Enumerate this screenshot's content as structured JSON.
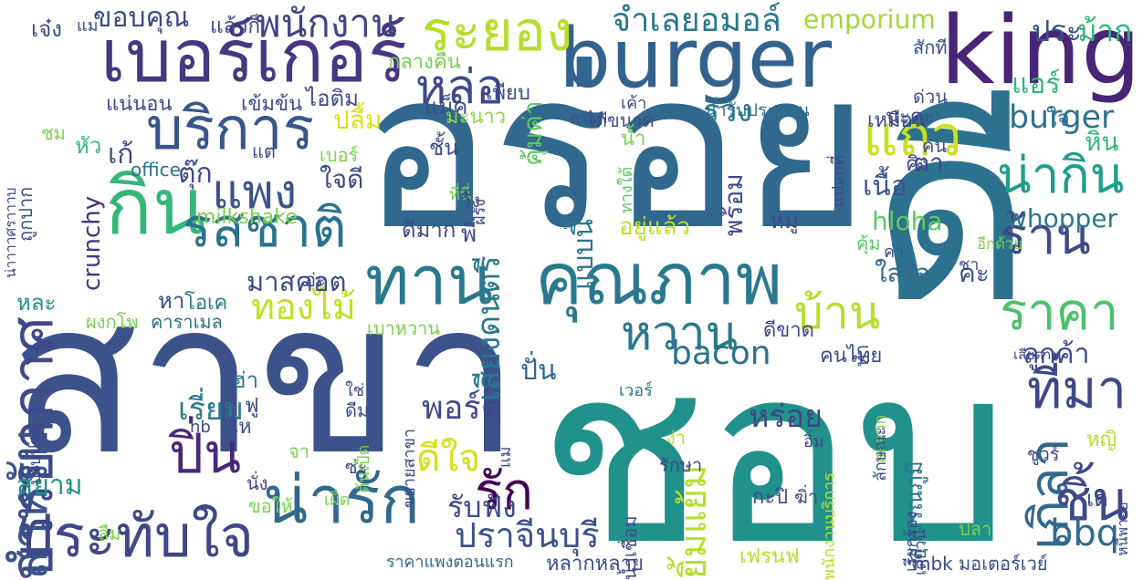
{
  "words": [
    {
      "text": "สาขา",
      "color": "#3b528b"
    },
    {
      "text": "ชอบ",
      "color": "#21918c"
    },
    {
      "text": "อร่อย",
      "color": "#31688e"
    },
    {
      "text": "ดี",
      "color": "#2c728e"
    },
    {
      "text": "burger",
      "color": "#33638d"
    },
    {
      "text": "king",
      "color": "#482576"
    },
    {
      "text": "เบอร์เกอร์",
      "color": "#453781"
    },
    {
      "text": "กิน",
      "color": "#35b779"
    },
    {
      "text": "บริการ",
      "color": "#39568c"
    },
    {
      "text": "รสชาติ",
      "color": "#2c728e"
    },
    {
      "text": "ระยอง",
      "color": "#b5de2b"
    },
    {
      "text": "หล่อ",
      "color": "#3e4989"
    },
    {
      "text": "คุณภาพ",
      "color": "#2a788e"
    },
    {
      "text": "แถว",
      "color": "#c8e020"
    },
    {
      "text": "ทาน",
      "color": "#2a788e"
    },
    {
      "text": "ประทับใจ",
      "color": "#3f4788"
    },
    {
      "text": "น่ารัก",
      "color": "#31688e"
    },
    {
      "text": "บรรยากาศ",
      "color": "#3e4989"
    },
    {
      "text": "สำหรับ",
      "color": "#3b528b"
    },
    {
      "text": "ที่มา",
      "color": "#3e4989"
    },
    {
      "text": "เกิลา",
      "color": "#31688e"
    },
    {
      "text": "ร้าน",
      "color": "#3e4989"
    },
    {
      "text": "น่ากิน",
      "color": "#1f9e89"
    },
    {
      "text": "ราคา",
      "color": "#4ac16d"
    },
    {
      "text": "หวาน",
      "color": "#2a788e"
    },
    {
      "text": "บ้าน",
      "color": "#b5de2b"
    },
    {
      "text": "ทองไม้",
      "color": "#c2df23"
    },
    {
      "text": "แพง",
      "color": "#3b528b"
    },
    {
      "text": "ปิ่น",
      "color": "#482878"
    },
    {
      "text": "รัก",
      "color": "#440154"
    },
    {
      "text": "ดีใจ",
      "color": "#d2e21b"
    },
    {
      "text": "ชิ้น",
      "color": "#3e4989"
    },
    {
      "text": "bbq",
      "color": "#31688e"
    },
    {
      "text": "bacon",
      "color": "#2c728e"
    },
    {
      "text": "burger",
      "color": "#2c728e"
    },
    {
      "text": "whopper",
      "color": "#2a788e"
    },
    {
      "text": "hloha",
      "color": "#5ec962"
    },
    {
      "text": "emporium",
      "color": "#a0da39"
    },
    {
      "text": "crunchy",
      "color": "#46327e"
    },
    {
      "text": "พนักงาน",
      "color": "#414487"
    },
    {
      "text": "จำเลยอมอล์",
      "color": "#2a788e"
    },
    {
      "text": "ขอบคุณ",
      "color": "#3e4989"
    },
    {
      "text": "ประ",
      "color": "#3b528b"
    },
    {
      "text": "ม้าก",
      "color": "#35b779"
    },
    {
      "text": "ปราจีนบุรี",
      "color": "#3b528b"
    },
    {
      "text": "พอร์ต",
      "color": "#3e4989"
    },
    {
      "text": "หร่อย",
      "color": "#404688"
    },
    {
      "text": "เรี่ยม",
      "color": "#2a788e"
    },
    {
      "text": "สยาม",
      "color": "#21918c"
    },
    {
      "text": "มาสคอต",
      "color": "#3e4989"
    },
    {
      "text": "ลูกค้า",
      "color": "#3e4989"
    },
    {
      "text": "สุวรรณภูมิ",
      "color": "#2c728e"
    },
    {
      "text": "เสียงดนตรี",
      "color": "#2a788e"
    },
    {
      "text": "ยิ้มแย้ม",
      "color": "#b5de2b"
    },
    {
      "text": "พร้อม",
      "color": "#3e4989"
    },
    {
      "text": "แบบนี้",
      "color": "#2a788e"
    },
    {
      "text": "คุ้มค่า",
      "color": "#5ec962"
    },
    {
      "text": "ร่วง",
      "color": "#2a788e"
    },
    {
      "text": "รับฟัง",
      "color": "#3e4989"
    },
    {
      "text": "ปั่น",
      "color": "#31688e"
    },
    {
      "text": "เนื้อ",
      "color": "#3b528b"
    },
    {
      "text": "ใส่ใจ",
      "color": "#31688e"
    },
    {
      "text": "คะ",
      "color": "#3b528b"
    },
    {
      "text": "หิน",
      "color": "#35b779"
    },
    {
      "text": "ตา",
      "color": "#3e4989"
    },
    {
      "text": "คน",
      "color": "#3e4989"
    },
    {
      "text": "office",
      "color": "#2c728e"
    },
    {
      "text": "milkshake",
      "color": "#7ad151"
    },
    {
      "text": "เก้",
      "color": "#3e4989"
    },
    {
      "text": "ตุ๊ก",
      "color": "#3e4989"
    },
    {
      "text": "ใจดี",
      "color": "#3e4989"
    },
    {
      "text": "ปลื้ม",
      "color": "#d8e219"
    },
    {
      "text": "แอร์",
      "color": "#35b779"
    },
    {
      "text": "แม็ค",
      "color": "#3e4989"
    },
    {
      "text": "ไอติม",
      "color": "#3e4989"
    },
    {
      "text": "มะนาว",
      "color": "#8fd744"
    },
    {
      "text": "ดีมาก",
      "color": "#3e4989"
    },
    {
      "text": "อยู่แล้ว",
      "color": "#bddf26"
    },
    {
      "text": "ถูกปาก",
      "color": "#3e4989"
    },
    {
      "text": "โอเค",
      "color": "#2a788e"
    },
    {
      "text": "หละ",
      "color": "#21918c"
    },
    {
      "text": "ฮ่า",
      "color": "#2a788e"
    },
    {
      "text": "ไห",
      "color": "#3e4989"
    },
    {
      "text": "ฟู",
      "color": "#3e4989"
    },
    {
      "text": "จา",
      "color": "#7ad151"
    },
    {
      "text": "กะปิ",
      "color": "#3e4989"
    },
    {
      "text": "คนไทย",
      "color": "#3e4989"
    },
    {
      "text": "เสียดาย",
      "color": "#3e4989"
    },
    {
      "text": "หลากหลาย",
      "color": "#3e4989"
    },
    {
      "text": "มอเตอร์เวย์",
      "color": "#3e4989"
    },
    {
      "text": "mbk",
      "color": "#3e4989"
    },
    {
      "text": "เฟรนฟ",
      "color": "#b5de2b"
    },
    {
      "text": "ราคาแพงตอนแรก",
      "color": "#31688e"
    },
    {
      "text": "เบาหวาน",
      "color": "#7ad151"
    },
    {
      "text": "คาราเมล",
      "color": "#2c728e"
    },
    {
      "text": "ผงกโพ",
      "color": "#7ad151"
    },
    {
      "text": "ปรับปรุง",
      "color": "#3e4989"
    },
    {
      "text": "ขยายสาขา",
      "color": "#3e4989"
    },
    {
      "text": "ดีขาด",
      "color": "#3e4989"
    },
    {
      "text": "ดีม",
      "color": "#3e4989"
    },
    {
      "text": "อีกด้วย",
      "color": "#7ad151"
    },
    {
      "text": "ชา",
      "color": "#3e4989"
    },
    {
      "text": "ค่า",
      "color": "#3e4989"
    },
    {
      "text": "แปลกที่",
      "color": "#3e4989"
    },
    {
      "text": "ทางใต้",
      "color": "#5ec962"
    },
    {
      "text": "ที่นี่",
      "color": "#7ad151"
    },
    {
      "text": "ฝรั่ง",
      "color": "#3e4989"
    },
    {
      "text": "น่ารับประทาน",
      "color": "#2c728e"
    },
    {
      "text": "กาแฟ",
      "color": "#3e4989"
    },
    {
      "text": "ได้ขนาด",
      "color": "#3e4989"
    },
    {
      "text": "เค้า",
      "color": "#3e4989"
    },
    {
      "text": "นะคะ",
      "color": "#3e4989"
    },
    {
      "text": "เหมือน",
      "color": "#3e4989"
    },
    {
      "text": "ด่วน",
      "color": "#3e4989"
    },
    {
      "text": "สักที",
      "color": "#3e4989"
    },
    {
      "text": "ใจ",
      "color": "#2c728e"
    },
    {
      "text": "คิง",
      "color": "#3e4989"
    },
    {
      "text": "แน่นอน",
      "color": "#3e4989"
    },
    {
      "text": "เข้มข้น",
      "color": "#3e4989"
    },
    {
      "text": "แต่",
      "color": "#3e4989"
    },
    {
      "text": "เบอร์",
      "color": "#7ad151"
    },
    {
      "text": "ชั้น",
      "color": "#3e4989"
    },
    {
      "text": "น้ำ",
      "color": "#7ad151"
    },
    {
      "text": "พี่",
      "color": "#3e4989"
    },
    {
      "text": "วิ่ง",
      "color": "#3e4989"
    },
    {
      "text": "กลางคืน",
      "color": "#7ad151"
    },
    {
      "text": "เพียบ",
      "color": "#3e4989"
    },
    {
      "text": "แล้วก็",
      "color": "#3e4989"
    },
    {
      "text": "เจ๋ง",
      "color": "#3e4989"
    },
    {
      "text": "แม",
      "color": "#3e4989"
    },
    {
      "text": "หัว",
      "color": "#35b779"
    },
    {
      "text": "ชม",
      "color": "#7ad151"
    },
    {
      "text": "น่าาาาศราาาบ",
      "color": "#3e4989"
    },
    {
      "text": "อ่ะ",
      "color": "#3e4989"
    },
    {
      "text": "หา",
      "color": "#3e4989"
    },
    {
      "text": "ใช่",
      "color": "#3e4989"
    },
    {
      "text": "ซ่ะ",
      "color": "#3e4989"
    },
    {
      "text": "เวอร์",
      "color": "#2a788e"
    },
    {
      "text": "สะดวก",
      "color": "#7ad151"
    },
    {
      "text": "ลักษณะ",
      "color": "#3e4989"
    },
    {
      "text": "หญิ",
      "color": "#b5de2b"
    },
    {
      "text": "เด",
      "color": "#3e4989"
    },
    {
      "text": "หนี้พายย",
      "color": "#3e4989"
    },
    {
      "text": "เดี๋ยวนี้",
      "color": "#3e4989"
    },
    {
      "text": "เรียกร้อง",
      "color": "#3e4989"
    },
    {
      "text": "พนักงานบริการ",
      "color": "#b5de2b"
    },
    {
      "text": "ปลา",
      "color": "#7ad151"
    },
    {
      "text": "น้ำเชื่อม",
      "color": "#3e4989"
    },
    {
      "text": "รักษา",
      "color": "#3e4989"
    },
    {
      "text": "ง่า",
      "color": "#b5de2b"
    },
    {
      "text": "ต้นเป็ด",
      "color": "#7ad151"
    },
    {
      "text": "แม่",
      "color": "#3e4989"
    },
    {
      "text": "เผ็ด",
      "color": "#7ad151"
    },
    {
      "text": "ขอให้",
      "color": "#7ad151"
    },
    {
      "text": "นั่ง",
      "color": "#3e4989"
    },
    {
      "text": "ลืม",
      "color": "#7ad151"
    },
    {
      "text": "hb",
      "color": "#3e4989"
    },
    {
      "text": "ฆิ่า",
      "color": "#3e4989"
    },
    {
      "text": "อิ่ม",
      "color": "#3e4989"
    },
    {
      "text": "ชูวร์",
      "color": "#3e4989"
    },
    {
      "text": "ทำ",
      "color": "#3e4989"
    },
    {
      "text": "คุ้ม",
      "color": "#5ec962"
    },
    {
      "text": "หมู",
      "color": "#3e4989"
    }
  ]
}
